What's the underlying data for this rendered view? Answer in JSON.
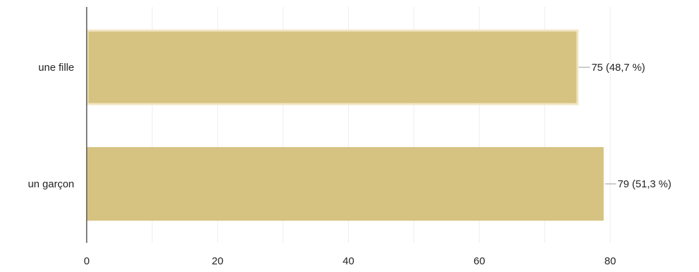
{
  "chart_data": {
    "type": "bar",
    "orientation": "horizontal",
    "categories": [
      "une fille",
      "un garçon"
    ],
    "values": [
      75,
      79
    ],
    "data_labels": [
      "75 (48,7 %)",
      "79 (51,3 %)"
    ],
    "xlim": [
      0,
      80
    ],
    "xticks": [
      0,
      20,
      40,
      60,
      80
    ],
    "grid": true,
    "bar_color": "#d6c381",
    "highlight_color": "#f1e6c2",
    "highlighted_category": "une fille",
    "grid_color": "#eeeeee",
    "axis_color": "#555555"
  }
}
